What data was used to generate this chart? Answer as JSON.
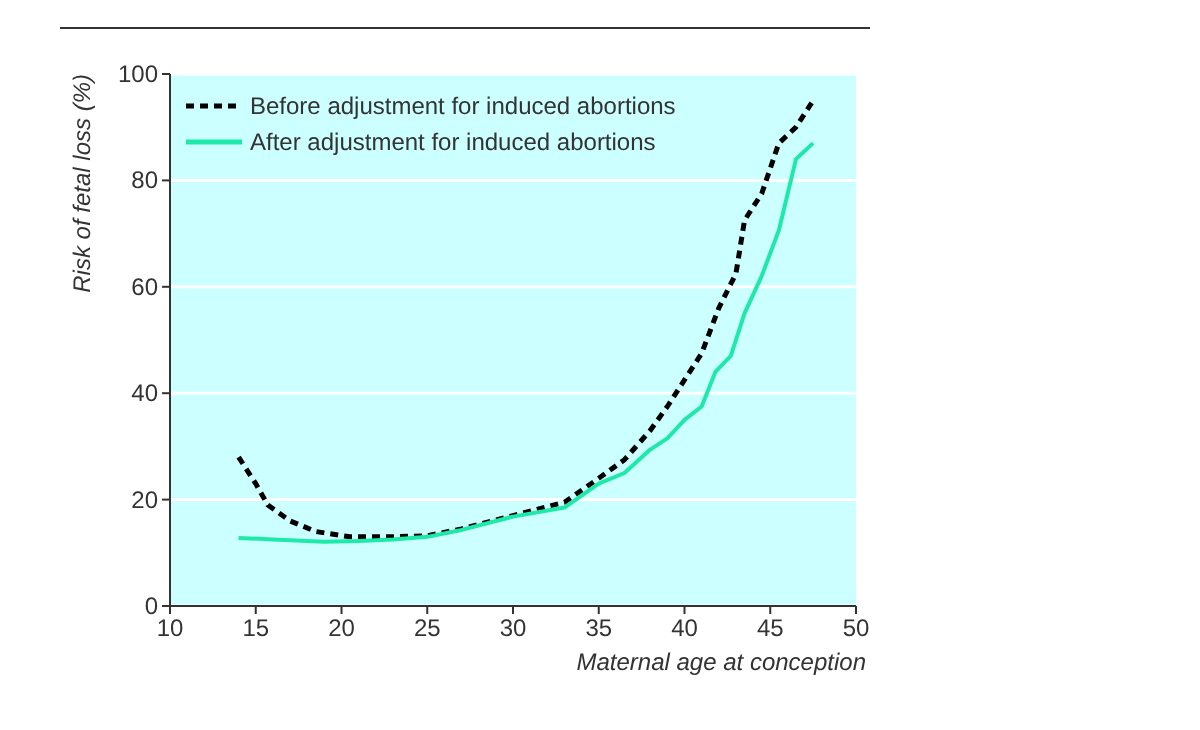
{
  "chart_data": {
    "type": "line",
    "xlabel": "Maternal age at conception",
    "ylabel": "Risk of fetal loss (%)",
    "xlim": [
      10,
      50
    ],
    "xticks": [
      10,
      15,
      20,
      25,
      30,
      35,
      40,
      45,
      50
    ],
    "ylim": [
      0,
      100
    ],
    "yticks": [
      0,
      20,
      40,
      60,
      80,
      100
    ],
    "grid": "y",
    "legend": "top left",
    "series": [
      {
        "name": "Before adjustment for induced abortions",
        "color": "#000000",
        "line_style": "dashed",
        "x": [
          14,
          15,
          15.7,
          17,
          18.5,
          20.5,
          23,
          25,
          27,
          30,
          33,
          35,
          36.5,
          38,
          39,
          40,
          41,
          42,
          43,
          43.5,
          44.5,
          45.5,
          46.5,
          47.5
        ],
        "values": [
          28,
          23,
          19,
          16,
          14,
          13,
          13,
          13.2,
          14.5,
          17,
          19.5,
          24,
          27.5,
          33,
          37.5,
          42.5,
          47.5,
          56,
          62.5,
          72.5,
          77.5,
          87,
          90,
          95
        ]
      },
      {
        "name": "After adjustment for induced abortions",
        "color": "#1de9a8",
        "line_style": "solid",
        "x": [
          14,
          16,
          19,
          21,
          23,
          25,
          27,
          30,
          33,
          35,
          36.5,
          38,
          39,
          40,
          41,
          41.8,
          42.7,
          43.5,
          44.5,
          45.5,
          46.5,
          47.5
        ],
        "values": [
          12.8,
          12.5,
          12.1,
          12.2,
          12.5,
          13,
          14.3,
          16.8,
          18.5,
          23,
          25,
          29.4,
          31.5,
          35,
          37.5,
          44,
          47,
          55,
          62,
          70.6,
          84,
          87
        ]
      }
    ]
  }
}
